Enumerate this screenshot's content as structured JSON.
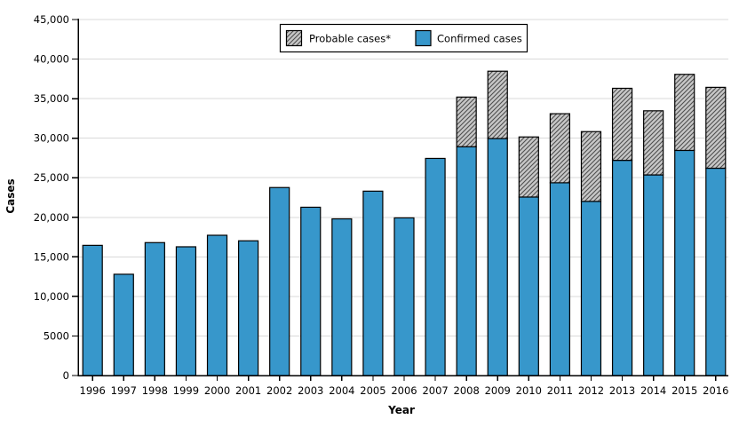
{
  "chart_data": {
    "type": "bar",
    "stacked": true,
    "categories": [
      "1996",
      "1997",
      "1998",
      "1999",
      "2000",
      "2001",
      "2002",
      "2003",
      "2004",
      "2005",
      "2006",
      "2007",
      "2008",
      "2009",
      "2010",
      "2011",
      "2012",
      "2013",
      "2014",
      "2015",
      "2016"
    ],
    "series": [
      {
        "name": "Confirmed cases",
        "values": [
          16455,
          12801,
          16801,
          16273,
          17730,
          17029,
          23763,
          21273,
          19804,
          23305,
          19931,
          27444,
          28921,
          29959,
          22561,
          24364,
          22014,
          27203,
          25359,
          28453,
          26203
        ]
      },
      {
        "name": "Probable cases*",
        "values": [
          0,
          0,
          0,
          0,
          0,
          0,
          0,
          0,
          0,
          0,
          0,
          0,
          6277,
          8509,
          7597,
          8733,
          8817,
          9104,
          8103,
          9616,
          10226
        ]
      }
    ],
    "xlabel": "Year",
    "ylabel": "Cases",
    "ylim": [
      0,
      45000
    ],
    "ytick_values": [
      0,
      5000,
      10000,
      15000,
      20000,
      25000,
      30000,
      35000,
      40000,
      45000
    ],
    "ytick_labels": [
      "0",
      "5000",
      "10,000",
      "15,000",
      "20,000",
      "25,000",
      "30,000",
      "35,000",
      "40,000",
      "45,000"
    ],
    "grid": "horizontal",
    "legend_position": "top-center-inside",
    "colors": {
      "confirmed_fill": "#3797CB",
      "probable_fill": "#C7C7C7",
      "probable_hatch_line": "#4D4D4D",
      "bar_outline": "#000000",
      "gridline": "#D9D9D9",
      "axis": "#000000",
      "text": "#000000",
      "background": "#FFFFFF"
    }
  }
}
